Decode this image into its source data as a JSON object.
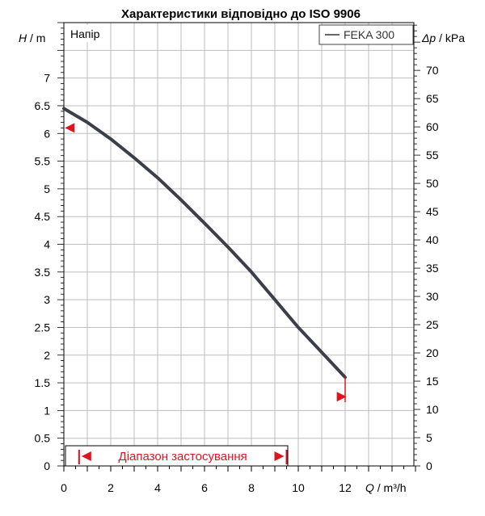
{
  "chart_data": {
    "type": "line",
    "title": "Характеристики відповідно до ISO 9906",
    "panel_label": "Напір",
    "x_axis": {
      "label_var": "Q",
      "label_unit": " / m³/h",
      "min": 0,
      "max": 15,
      "ticks": [
        0,
        2,
        4,
        6,
        8,
        10,
        12
      ],
      "tick_labels": [
        "0",
        "2",
        "4",
        "6",
        "8",
        "10",
        "12"
      ]
    },
    "y_left": {
      "label_var": "H",
      "label_unit": " / m",
      "min": 0,
      "max": 8,
      "ticks": [
        0,
        0.5,
        1,
        1.5,
        2,
        2.5,
        3,
        3.5,
        4,
        4.5,
        5,
        5.5,
        6,
        6.5,
        7
      ],
      "tick_labels": [
        "0",
        "0.5",
        "1",
        "1.5",
        "2",
        "2.5",
        "3",
        "3.5",
        "4",
        "4.5",
        "5",
        "5.5",
        "6",
        "6.5",
        "7"
      ]
    },
    "y_right": {
      "label_var": "Δp",
      "label_unit": " / kPa",
      "min": 0,
      "max": 78.45,
      "ticks": [
        0,
        5,
        10,
        15,
        20,
        25,
        30,
        35,
        40,
        45,
        50,
        55,
        60,
        65,
        70
      ],
      "tick_labels": [
        "0",
        "5",
        "10",
        "15",
        "20",
        "25",
        "30",
        "35",
        "40",
        "45",
        "50",
        "55",
        "60",
        "65",
        "70"
      ]
    },
    "grid": true,
    "legend_position": "top-right",
    "series": [
      {
        "name": "FEKA 300",
        "color": "#3a3f48",
        "x": [
          0,
          1,
          2,
          3,
          4,
          5,
          6,
          7,
          8,
          9,
          10,
          11,
          12
        ],
        "y": [
          6.45,
          6.2,
          5.9,
          5.56,
          5.2,
          4.8,
          4.38,
          3.95,
          3.5,
          3.0,
          2.5,
          2.05,
          1.6
        ]
      }
    ],
    "markers": [
      {
        "kind": "triangle-left",
        "x": 0.25,
        "y": 6.1,
        "color": "#e0141e"
      },
      {
        "kind": "triangle-right",
        "x": 11.85,
        "y": 1.25,
        "color": "#e0141e"
      }
    ],
    "application_range": {
      "label": "Діапазон застосування",
      "from": 0.65,
      "to": 9.5,
      "color": "#e0141e"
    }
  }
}
